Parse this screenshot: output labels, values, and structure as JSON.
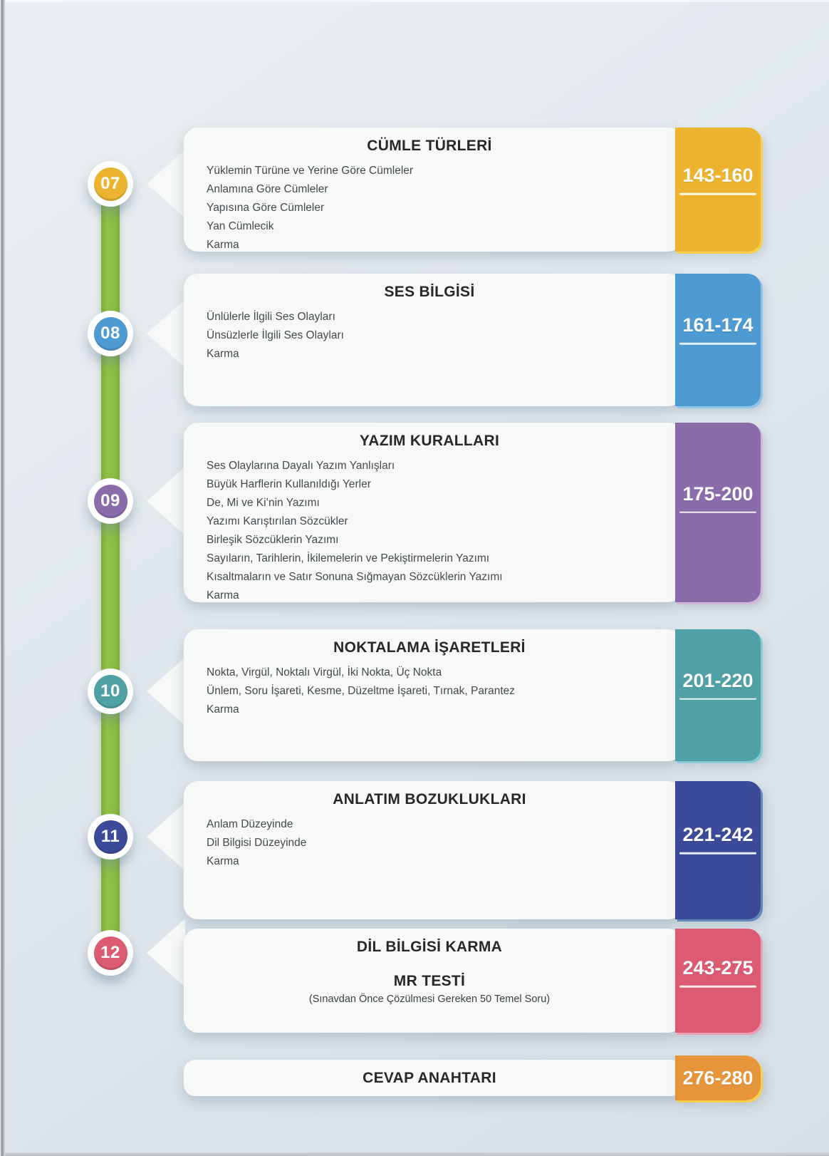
{
  "timeline_color": "#8cbd43",
  "sections": [
    {
      "number": "07",
      "title": "CÜMLE TÜRLERİ",
      "topics": [
        "Yüklemin Türüne ve Yerine Göre Cümleler",
        "Anlamına Göre Cümleler",
        "Yapısına Göre Cümleler",
        "Yan Cümlecik",
        "Karma"
      ],
      "pages": "143-160",
      "color": "#ecb32f",
      "edge_color": "#f5cf4f"
    },
    {
      "number": "08",
      "title": "SES BİLGİSİ",
      "topics": [
        "Ünlülerle İlgili Ses Olayları",
        "Ünsüzlerle İlgili Ses Olayları",
        "Karma"
      ],
      "pages": "161-174",
      "color": "#4e9ad3",
      "edge_color": "#8ec4e8"
    },
    {
      "number": "09",
      "title": "YAZIM KURALLARI",
      "topics": [
        "Ses Olaylarına Dayalı Yazım Yanlışları",
        "Büyük Harflerin Kullanıldığı Yerler",
        "De, Mi ve Ki’nin Yazımı",
        "Yazımı Karıştırılan Sözcükler",
        "Birleşik Sözcüklerin Yazımı",
        "Sayıların, Tarihlerin, İkilemelerin ve Pekiştirmelerin Yazımı",
        "Kısaltmaların ve Satır Sonuna Sığmayan Sözcüklerin Yazımı",
        "Karma"
      ],
      "pages": "175-200",
      "color": "#8a6cab",
      "edge_color": "#d0b6d8"
    },
    {
      "number": "10",
      "title": "NOKTALAMA İŞARETLERİ",
      "topics": [
        "Nokta, Virgül, Noktalı Virgül, İki Nokta, Üç Nokta",
        "Ünlem, Soru İşareti, Kesme, Düzeltme İşareti, Tırnak, Parantez",
        "Karma"
      ],
      "pages": "201-220",
      "color": "#4fa1a5",
      "edge_color": "#85cbd6"
    },
    {
      "number": "11",
      "title": "ANLATIM BOZUKLUKLARI",
      "topics": [
        "Anlam Düzeyinde",
        "Dil Bilgisi Düzeyinde",
        "Karma"
      ],
      "pages": "221-242",
      "color": "#3c4a9a",
      "edge_color": "#6189bd"
    },
    {
      "number": "12",
      "title": "DİL BİLGİSİ KARMA",
      "title2": "MR TESTİ",
      "subtitle": "(Sınavdan Önce Çözülmesi Gereken 50 Temel Soru)",
      "topics": [],
      "pages": "243-275",
      "color": "#dc5a72",
      "edge_color": "#e9a0b6"
    }
  ],
  "footer": {
    "title": "CEVAP ANAHTARI",
    "pages": "276-280",
    "color": "#e6953a",
    "edge_color": "#f7cf4a"
  }
}
